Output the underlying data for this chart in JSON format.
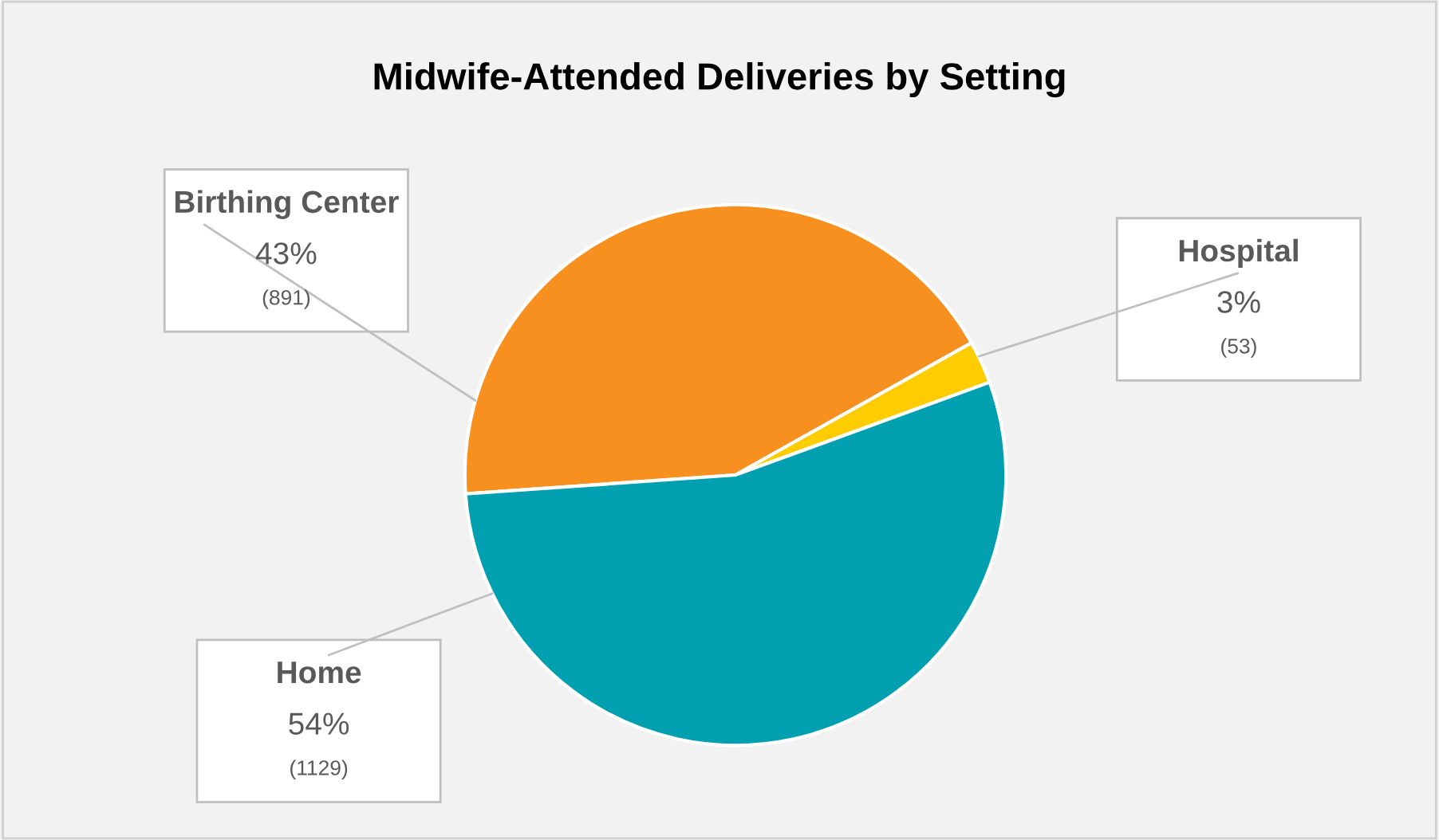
{
  "chart_data": {
    "type": "pie",
    "title": "Midwife-Attended Deliveries by Setting",
    "categories": [
      "Birthing Center",
      "Hospital",
      "Home"
    ],
    "values": [
      891,
      53,
      1129
    ],
    "value_labels": [
      "43%\n(891)",
      "3%\n(53)",
      "54%\n(1129)"
    ],
    "colors": [
      "#f7901e",
      "#ffcc00",
      "#00a0b0"
    ],
    "legend": false
  }
}
